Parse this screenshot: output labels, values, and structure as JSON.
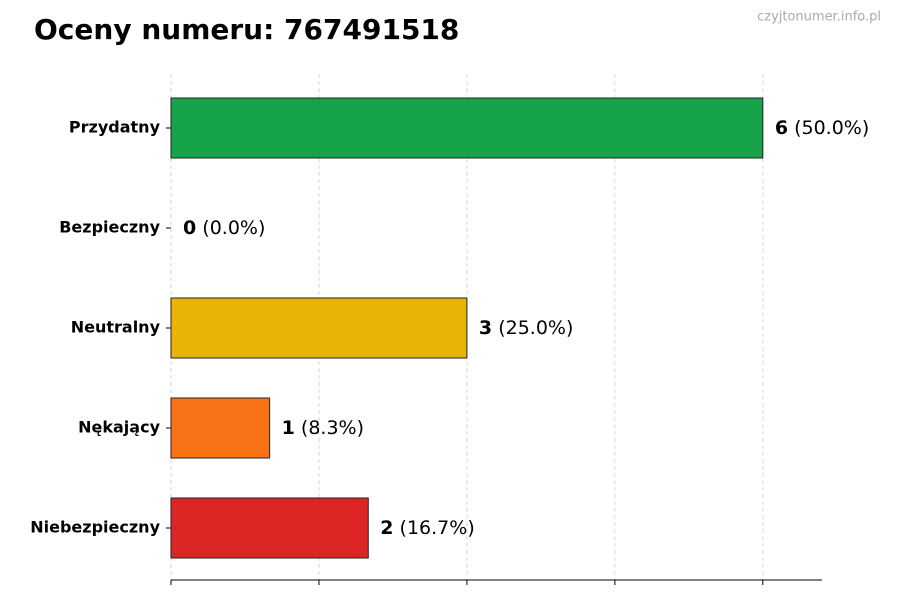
{
  "chart_data": {
    "type": "barh",
    "title": "Oceny numeru: 767491518",
    "watermark": "czyjtonumer.info.pl",
    "categories": [
      "Przydatny",
      "Bezpieczny",
      "Neutralny",
      "Nękający",
      "Niebezpieczny"
    ],
    "values": [
      6,
      0,
      3,
      1,
      2
    ],
    "percentages": [
      50.0,
      0.0,
      25.0,
      8.3,
      16.7
    ],
    "percentage_labels": [
      "(50.0%)",
      "(0.0%)",
      "(25.0%)",
      "(8.3%)",
      "(16.7%)"
    ],
    "colors": [
      "#16a34a",
      "#888888",
      "#eab308",
      "#f97316",
      "#dc2626"
    ],
    "xlim": [
      0,
      6.6
    ],
    "xticks": [
      0,
      1.5,
      3,
      4.5,
      6
    ],
    "xtick_labels_shown": false,
    "grid": true
  }
}
